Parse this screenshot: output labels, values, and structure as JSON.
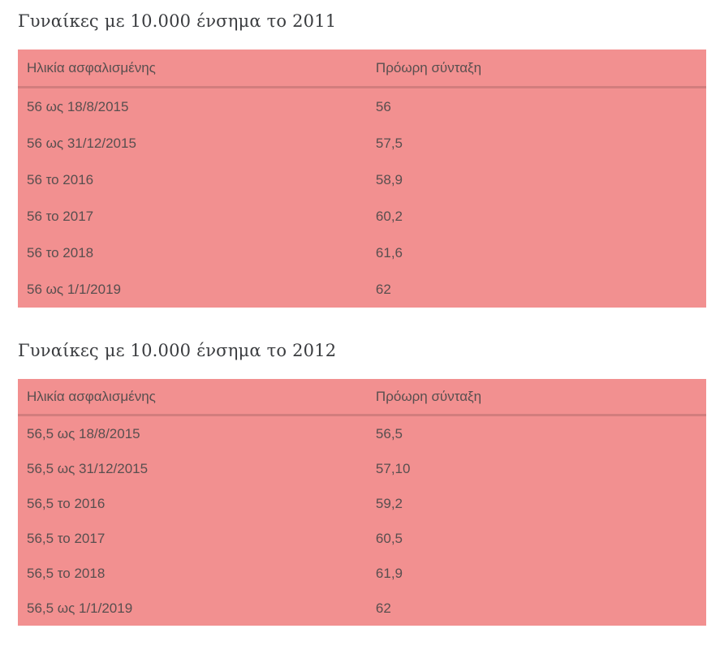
{
  "colors": {
    "table_background": "#f29090",
    "table_text": "#584f4f",
    "title_text": "#3a3c3f",
    "page_background": "#ffffff"
  },
  "tables": [
    {
      "title": "Γυναίκες με 10.000 ένσημα το 2011",
      "columns": [
        "Ηλικία ασφαλισμένης",
        "Πρόωρη σύνταξη"
      ],
      "rows": [
        [
          "56 ως 18/8/2015",
          "56"
        ],
        [
          "56 ως 31/12/2015",
          "57,5"
        ],
        [
          "56 το 2016",
          "58,9"
        ],
        [
          "56 το 2017",
          "60,2"
        ],
        [
          "56 το 2018",
          "61,6"
        ],
        [
          "56 ως 1/1/2019",
          "62"
        ]
      ]
    },
    {
      "title": "Γυναίκες με 10.000 ένσημα το 2012",
      "columns": [
        "Ηλικία ασφαλισμένης",
        "Πρόωρη σύνταξη"
      ],
      "rows": [
        [
          "56,5 ως 18/8/2015",
          "56,5"
        ],
        [
          "56,5 ως 31/12/2015",
          "57,10"
        ],
        [
          "56,5 το 2016",
          "59,2"
        ],
        [
          "56,5 το 2017",
          "60,5"
        ],
        [
          "56,5 το 2018",
          "61,9"
        ],
        [
          "56,5 ως 1/1/2019",
          "62"
        ]
      ]
    }
  ]
}
